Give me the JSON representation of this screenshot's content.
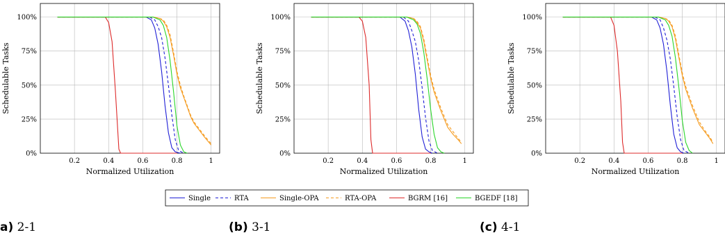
{
  "legend": [
    "Single",
    "RTA",
    "Single-OPA",
    "RTA-OPA",
    "BGRM [16]",
    "BGEDF [18]"
  ],
  "captions": [
    {
      "label": "a)",
      "text": "2-1"
    },
    {
      "label": "(b)",
      "text": "3-1"
    },
    {
      "label": "(c)",
      "text": "4-1"
    }
  ],
  "colors": {
    "Single": "#1f1fd6",
    "RTA": "#1f1fd6",
    "Single-OPA": "#f59b1f",
    "RTA-OPA": "#f59b1f",
    "BGRM [16]": "#dd2a2a",
    "BGEDF [18]": "#2ad62a"
  },
  "chart_data": [
    {
      "type": "line",
      "xlabel": "Normalized Utilization",
      "ylabel": "Schedulable Tasks",
      "xlim": [
        0,
        1.05
      ],
      "ylim": [
        0,
        110
      ],
      "xticks": [
        "0.2",
        "0.4",
        "0.6",
        "0.8",
        "1"
      ],
      "yticks": [
        "0%",
        "25%",
        "50%",
        "75%",
        "100%"
      ],
      "grid": true,
      "series": [
        {
          "name": "Single",
          "dash": "solid",
          "x": [
            0.1,
            0.62,
            0.65,
            0.67,
            0.69,
            0.71,
            0.73,
            0.75,
            0.77,
            0.79,
            0.82
          ],
          "y": [
            100,
            100,
            98,
            92,
            80,
            60,
            35,
            15,
            4,
            1,
            0
          ]
        },
        {
          "name": "RTA",
          "dash": "dashed",
          "x": [
            0.1,
            0.64,
            0.67,
            0.69,
            0.71,
            0.73,
            0.75,
            0.77,
            0.79,
            0.81,
            0.84
          ],
          "y": [
            100,
            100,
            98,
            93,
            85,
            70,
            50,
            28,
            10,
            2,
            0
          ]
        },
        {
          "name": "Single-OPA",
          "dash": "solid",
          "x": [
            0.1,
            0.66,
            0.7,
            0.72,
            0.74,
            0.76,
            0.78,
            0.8,
            0.82,
            0.84,
            0.86,
            0.88,
            0.9,
            0.93,
            0.96,
            1.0
          ],
          "y": [
            100,
            100,
            99,
            97,
            93,
            85,
            72,
            58,
            48,
            41,
            34,
            27,
            22,
            17,
            12,
            6
          ]
        },
        {
          "name": "RTA-OPA",
          "dash": "dashed",
          "x": [
            0.1,
            0.66,
            0.7,
            0.72,
            0.74,
            0.76,
            0.78,
            0.8,
            0.82,
            0.84,
            0.86,
            0.88,
            0.9,
            0.93,
            0.96,
            1.0
          ],
          "y": [
            100,
            100,
            99,
            98,
            94,
            87,
            74,
            60,
            50,
            42,
            35,
            28,
            23,
            18,
            13,
            7
          ]
        },
        {
          "name": "BGRM [16]",
          "dash": "solid",
          "x": [
            0.1,
            0.38,
            0.4,
            0.42,
            0.44,
            0.46,
            0.47,
            0.8
          ],
          "y": [
            100,
            100,
            96,
            82,
            45,
            3,
            0,
            0
          ]
        },
        {
          "name": "BGEDF [18]",
          "dash": "solid",
          "x": [
            0.1,
            0.66,
            0.7,
            0.72,
            0.74,
            0.76,
            0.78,
            0.8,
            0.82,
            0.84,
            0.86
          ],
          "y": [
            100,
            100,
            98,
            94,
            85,
            68,
            45,
            20,
            6,
            1,
            0
          ]
        }
      ]
    },
    {
      "type": "line",
      "xlabel": "Normalized Utilization",
      "ylabel": "Schedulable Tasks",
      "xlim": [
        0,
        1.05
      ],
      "ylim": [
        0,
        110
      ],
      "xticks": [
        "0.2",
        "0.4",
        "0.6",
        "0.8",
        "1"
      ],
      "yticks": [
        "0%",
        "25%",
        "50%",
        "75%",
        "100%"
      ],
      "grid": true,
      "series": [
        {
          "name": "Single",
          "dash": "solid",
          "x": [
            0.1,
            0.62,
            0.65,
            0.67,
            0.69,
            0.71,
            0.73,
            0.75,
            0.77,
            0.79,
            0.81
          ],
          "y": [
            100,
            100,
            97,
            90,
            78,
            58,
            32,
            12,
            3,
            1,
            0
          ]
        },
        {
          "name": "RTA",
          "dash": "dashed",
          "x": [
            0.1,
            0.64,
            0.67,
            0.69,
            0.71,
            0.73,
            0.75,
            0.77,
            0.79,
            0.81,
            0.84
          ],
          "y": [
            100,
            100,
            97,
            90,
            82,
            68,
            48,
            26,
            9,
            2,
            0
          ]
        },
        {
          "name": "Single-OPA",
          "dash": "solid",
          "x": [
            0.1,
            0.66,
            0.7,
            0.72,
            0.74,
            0.76,
            0.78,
            0.8,
            0.82,
            0.84,
            0.86,
            0.88,
            0.9,
            0.93,
            0.96,
            0.98
          ],
          "y": [
            100,
            100,
            99,
            96,
            92,
            82,
            68,
            55,
            45,
            38,
            31,
            25,
            19,
            14,
            10,
            7
          ]
        },
        {
          "name": "RTA-OPA",
          "dash": "dashed",
          "x": [
            0.1,
            0.66,
            0.7,
            0.72,
            0.74,
            0.76,
            0.78,
            0.8,
            0.82,
            0.84,
            0.86,
            0.88,
            0.9,
            0.93,
            0.96,
            0.98
          ],
          "y": [
            100,
            100,
            99,
            97,
            93,
            84,
            70,
            57,
            47,
            40,
            33,
            27,
            21,
            16,
            11,
            8
          ]
        },
        {
          "name": "BGRM [16]",
          "dash": "solid",
          "x": [
            0.1,
            0.38,
            0.4,
            0.42,
            0.44,
            0.45,
            0.46,
            0.8
          ],
          "y": [
            100,
            100,
            97,
            85,
            50,
            10,
            0,
            0
          ]
        },
        {
          "name": "BGEDF [18]",
          "dash": "solid",
          "x": [
            0.1,
            0.66,
            0.7,
            0.72,
            0.74,
            0.76,
            0.78,
            0.8,
            0.82,
            0.84,
            0.86,
            0.88
          ],
          "y": [
            100,
            100,
            98,
            95,
            88,
            74,
            54,
            32,
            14,
            4,
            1,
            0
          ]
        }
      ]
    },
    {
      "type": "line",
      "xlabel": "Normalized Utilization",
      "ylabel": "Schedulable Tasks",
      "xlim": [
        0,
        1.05
      ],
      "ylim": [
        0,
        110
      ],
      "xticks": [
        "0.2",
        "0.4",
        "0.6",
        "0.8",
        "1"
      ],
      "yticks": [
        "0%",
        "25%",
        "50%",
        "75%",
        "100%"
      ],
      "grid": true,
      "series": [
        {
          "name": "Single",
          "dash": "solid",
          "x": [
            0.1,
            0.62,
            0.65,
            0.67,
            0.69,
            0.71,
            0.73,
            0.75,
            0.77,
            0.79,
            0.81
          ],
          "y": [
            100,
            100,
            98,
            92,
            80,
            60,
            35,
            14,
            4,
            1,
            0
          ]
        },
        {
          "name": "RTA",
          "dash": "dashed",
          "x": [
            0.1,
            0.64,
            0.67,
            0.69,
            0.71,
            0.73,
            0.75,
            0.77,
            0.79,
            0.81,
            0.84
          ],
          "y": [
            100,
            100,
            98,
            92,
            83,
            69,
            49,
            27,
            10,
            2,
            0
          ]
        },
        {
          "name": "Single-OPA",
          "dash": "solid",
          "x": [
            0.1,
            0.66,
            0.7,
            0.72,
            0.74,
            0.76,
            0.78,
            0.8,
            0.82,
            0.84,
            0.86,
            0.88,
            0.9,
            0.93,
            0.96,
            0.98
          ],
          "y": [
            100,
            100,
            99,
            97,
            93,
            84,
            70,
            57,
            47,
            40,
            33,
            27,
            21,
            16,
            11,
            7
          ]
        },
        {
          "name": "RTA-OPA",
          "dash": "dashed",
          "x": [
            0.1,
            0.66,
            0.7,
            0.72,
            0.74,
            0.76,
            0.78,
            0.8,
            0.82,
            0.84,
            0.86,
            0.88,
            0.9,
            0.93,
            0.96,
            0.98
          ],
          "y": [
            100,
            100,
            99,
            98,
            94,
            86,
            72,
            59,
            49,
            42,
            35,
            29,
            23,
            17,
            12,
            8
          ]
        },
        {
          "name": "BGRM [16]",
          "dash": "solid",
          "x": [
            0.1,
            0.38,
            0.4,
            0.42,
            0.44,
            0.45,
            0.46,
            0.8
          ],
          "y": [
            100,
            100,
            94,
            75,
            38,
            8,
            0,
            0
          ]
        },
        {
          "name": "BGEDF [18]",
          "dash": "solid",
          "x": [
            0.1,
            0.66,
            0.7,
            0.72,
            0.74,
            0.76,
            0.78,
            0.8,
            0.82,
            0.84,
            0.86
          ],
          "y": [
            100,
            100,
            98,
            94,
            86,
            70,
            48,
            24,
            8,
            2,
            0
          ]
        }
      ]
    }
  ]
}
